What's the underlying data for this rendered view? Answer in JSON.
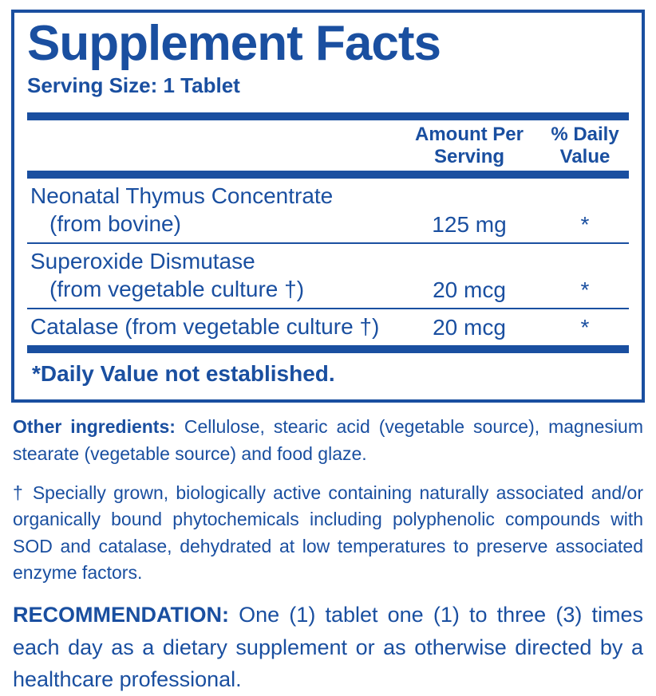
{
  "panel": {
    "title": "Supplement Facts",
    "serving_label": "Serving Size: 1 Tablet",
    "header_amount_l1": "Amount Per",
    "header_amount_l2": "Serving",
    "header_dv_l1": "% Daily",
    "header_dv_l2": "Value",
    "rows": [
      {
        "name": "Neonatal Thymus Concentrate",
        "sub": "(from bovine)",
        "amount": "125 mg",
        "dv": "*"
      },
      {
        "name": "Superoxide Dismutase",
        "sub": "(from vegetable culture †)",
        "amount": "20 mcg",
        "dv": "*"
      },
      {
        "name": "Catalase (from vegetable culture †)",
        "sub": "",
        "amount": "20 mcg",
        "dv": "*"
      }
    ],
    "footnote": "*Daily Value not established."
  },
  "other_ingredients": {
    "lead": "Other ingredients:",
    "text": " Cellulose, stearic acid (vegetable source), magnesium stearate (vegetable source) and food glaze."
  },
  "dagger": {
    "text": "† Specially grown, biologically active containing naturally associated and/or organically bound phytochemicals including polyphenolic compounds with SOD and catalase, dehydrated at low temperatures to preserve associated enzyme factors."
  },
  "recommendation": {
    "lead": "RECOMMENDATION:",
    "text": " One (1) tablet one (1) to three (3) times each day as a dietary supplement or as otherwise directed by a healthcare professional."
  }
}
